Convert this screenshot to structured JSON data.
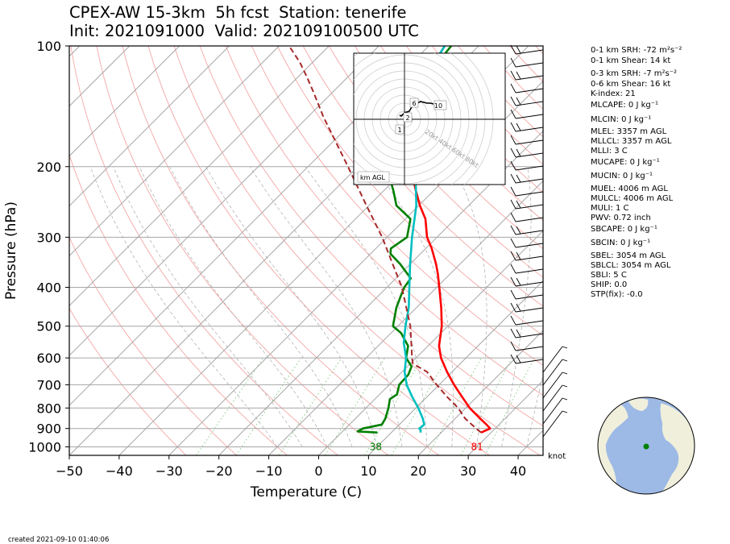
{
  "header": {
    "title_line1": "CPEX-AW 15-3km  5h fcst  Station: tenerife",
    "title_line2": "Init: 2021091000  Valid: 202109100500 UTC"
  },
  "chart_data": {
    "type": "line",
    "subtype": "skew-T log-P sounding",
    "xlabel": "Temperature (C)",
    "ylabel": "Pressure (hPa)",
    "xlim": [
      -50,
      45
    ],
    "ylim_hpa": [
      1050,
      100
    ],
    "y_scale": "log",
    "x_ticks": [
      -50,
      -40,
      -30,
      -20,
      -10,
      0,
      10,
      20,
      30,
      40
    ],
    "y_ticks": [
      100,
      200,
      300,
      400,
      500,
      600,
      700,
      800,
      900,
      1000
    ],
    "grid": true,
    "series": [
      {
        "role": "temperature",
        "color": "#ff0000",
        "points": [
          [
            921,
            28.0
          ],
          [
            900,
            29.0
          ],
          [
            880,
            27.5
          ],
          [
            850,
            25.0
          ],
          [
            800,
            20.8
          ],
          [
            750,
            17.0
          ],
          [
            700,
            13.0
          ],
          [
            650,
            9.0
          ],
          [
            600,
            5.0
          ],
          [
            560,
            2.2
          ],
          [
            500,
            -1.2
          ],
          [
            450,
            -5.0
          ],
          [
            400,
            -9.5
          ],
          [
            370,
            -12.5
          ],
          [
            350,
            -14.8
          ],
          [
            320,
            -18.8
          ],
          [
            300,
            -22.0
          ],
          [
            270,
            -26.0
          ],
          [
            250,
            -29.8
          ],
          [
            230,
            -33.5
          ],
          [
            200,
            -39.5
          ],
          [
            175,
            -44.0
          ],
          [
            150,
            -48.5
          ],
          [
            130,
            -52.5
          ],
          [
            115,
            -55.0
          ],
          [
            100,
            -56.8
          ]
        ]
      },
      {
        "role": "dewpoint",
        "color": "#008000",
        "points": [
          [
            921,
            7.2
          ],
          [
            915,
            3.0
          ],
          [
            900,
            3.5
          ],
          [
            880,
            6.5
          ],
          [
            850,
            6.0
          ],
          [
            800,
            4.5
          ],
          [
            760,
            3.0
          ],
          [
            740,
            3.5
          ],
          [
            700,
            2.0
          ],
          [
            660,
            1.8
          ],
          [
            630,
            0.8
          ],
          [
            600,
            -2.0
          ],
          [
            560,
            -4.0
          ],
          [
            520,
            -8.0
          ],
          [
            500,
            -11.0
          ],
          [
            450,
            -14.0
          ],
          [
            420,
            -15.5
          ],
          [
            400,
            -16.5
          ],
          [
            380,
            -17.0
          ],
          [
            350,
            -22.0
          ],
          [
            330,
            -26.0
          ],
          [
            320,
            -27.0
          ],
          [
            300,
            -26.0
          ],
          [
            270,
            -29.0
          ],
          [
            250,
            -34.5
          ],
          [
            230,
            -38.0
          ],
          [
            220,
            -40.0
          ],
          [
            200,
            -42.0
          ],
          [
            175,
            -44.5
          ],
          [
            150,
            -48.5
          ],
          [
            130,
            -52.5
          ],
          [
            115,
            -54.5
          ],
          [
            100,
            -55.5
          ]
        ]
      },
      {
        "role": "wetbulb",
        "color": "#00bfbf",
        "points": [
          [
            921,
            15.8
          ],
          [
            910,
            15.5
          ],
          [
            900,
            14.8
          ],
          [
            880,
            15.0
          ],
          [
            850,
            13.5
          ],
          [
            800,
            10.5
          ],
          [
            750,
            7.0
          ],
          [
            700,
            3.5
          ],
          [
            650,
            0.5
          ],
          [
            600,
            -2.0
          ],
          [
            550,
            -5.5
          ],
          [
            500,
            -8.5
          ],
          [
            450,
            -11.5
          ],
          [
            400,
            -15.5
          ],
          [
            350,
            -20.0
          ],
          [
            300,
            -25.0
          ],
          [
            250,
            -30.5
          ],
          [
            200,
            -38.5
          ],
          [
            175,
            -44.0
          ],
          [
            150,
            -48.5
          ],
          [
            130,
            -52.0
          ],
          [
            115,
            -55.0
          ],
          [
            100,
            -56.8
          ]
        ]
      },
      {
        "role": "parcel",
        "color": "#a52a2a",
        "style": "dashed",
        "points": [
          [
            921,
            28.0
          ],
          [
            900,
            26.2
          ],
          [
            850,
            22.0
          ],
          [
            800,
            18.5
          ],
          [
            750,
            14.0
          ],
          [
            700,
            9.5
          ],
          [
            650,
            5.0
          ],
          [
            620,
            0.5
          ],
          [
            600,
            -0.8
          ],
          [
            550,
            -4.0
          ],
          [
            500,
            -7.5
          ],
          [
            450,
            -12.0
          ],
          [
            400,
            -17.0
          ],
          [
            350,
            -23.5
          ],
          [
            300,
            -31.0
          ],
          [
            250,
            -40.5
          ],
          [
            200,
            -52.0
          ],
          [
            150,
            -67.0
          ],
          [
            130,
            -74.0
          ],
          [
            120,
            -78.0
          ],
          [
            110,
            -82.5
          ],
          [
            100,
            -88.0
          ]
        ]
      }
    ],
    "annotations": [
      {
        "text": "38",
        "color": "#008000"
      },
      {
        "text": "81",
        "color": "#ff0000"
      }
    ],
    "wind_barbs_units": "knot",
    "hodograph": {
      "label": "km AGL",
      "ring_labels": [
        "20kt",
        "40kt",
        "60kt",
        "80kt"
      ],
      "height_labels": [
        "1",
        "2",
        "6",
        "10"
      ],
      "trace": [
        [
          -3,
          5
        ],
        [
          -2,
          4
        ],
        [
          0,
          8
        ],
        [
          3,
          10
        ],
        [
          5,
          17
        ],
        [
          10,
          22
        ],
        [
          14,
          20
        ],
        [
          16,
          20
        ],
        [
          18,
          19
        ]
      ],
      "label_positions": [
        [
          -3,
          -13
        ],
        [
          2,
          2
        ],
        [
          6,
          20
        ],
        [
          21,
          17
        ]
      ]
    },
    "indices": [
      "0-1 km SRH: -72 m²s⁻²",
      "0-1 km Shear: 14 kt",
      "0-3 km SRH: -7 m²s⁻²",
      "0-6 km Shear: 16 kt",
      "K-index: 21",
      "MLCAPE: 0 J kg⁻¹",
      "MLCIN: 0 J kg⁻¹",
      "MLEL: 3357 m AGL",
      "MLLCL: 3357 m AGL",
      "MLLI: 3 C",
      "MUCAPE: 0 J kg⁻¹",
      "MUCIN: 0 J kg⁻¹",
      "MUEL: 4006 m AGL",
      "MULCL: 4006 m AGL",
      "MULI: 1 C",
      "PWV: 0.72 inch",
      "SBCAPE: 0 J kg⁻¹",
      "SBCIN: 0 J kg⁻¹",
      "SBEL: 3054 m AGL",
      "SBLCL: 3054 m AGL",
      "SBLI: 5 C",
      "SHIP: 0.0",
      "STP(fix): -0.0"
    ]
  },
  "footer": {
    "created": "created 2021-09-10 01:40:06"
  }
}
